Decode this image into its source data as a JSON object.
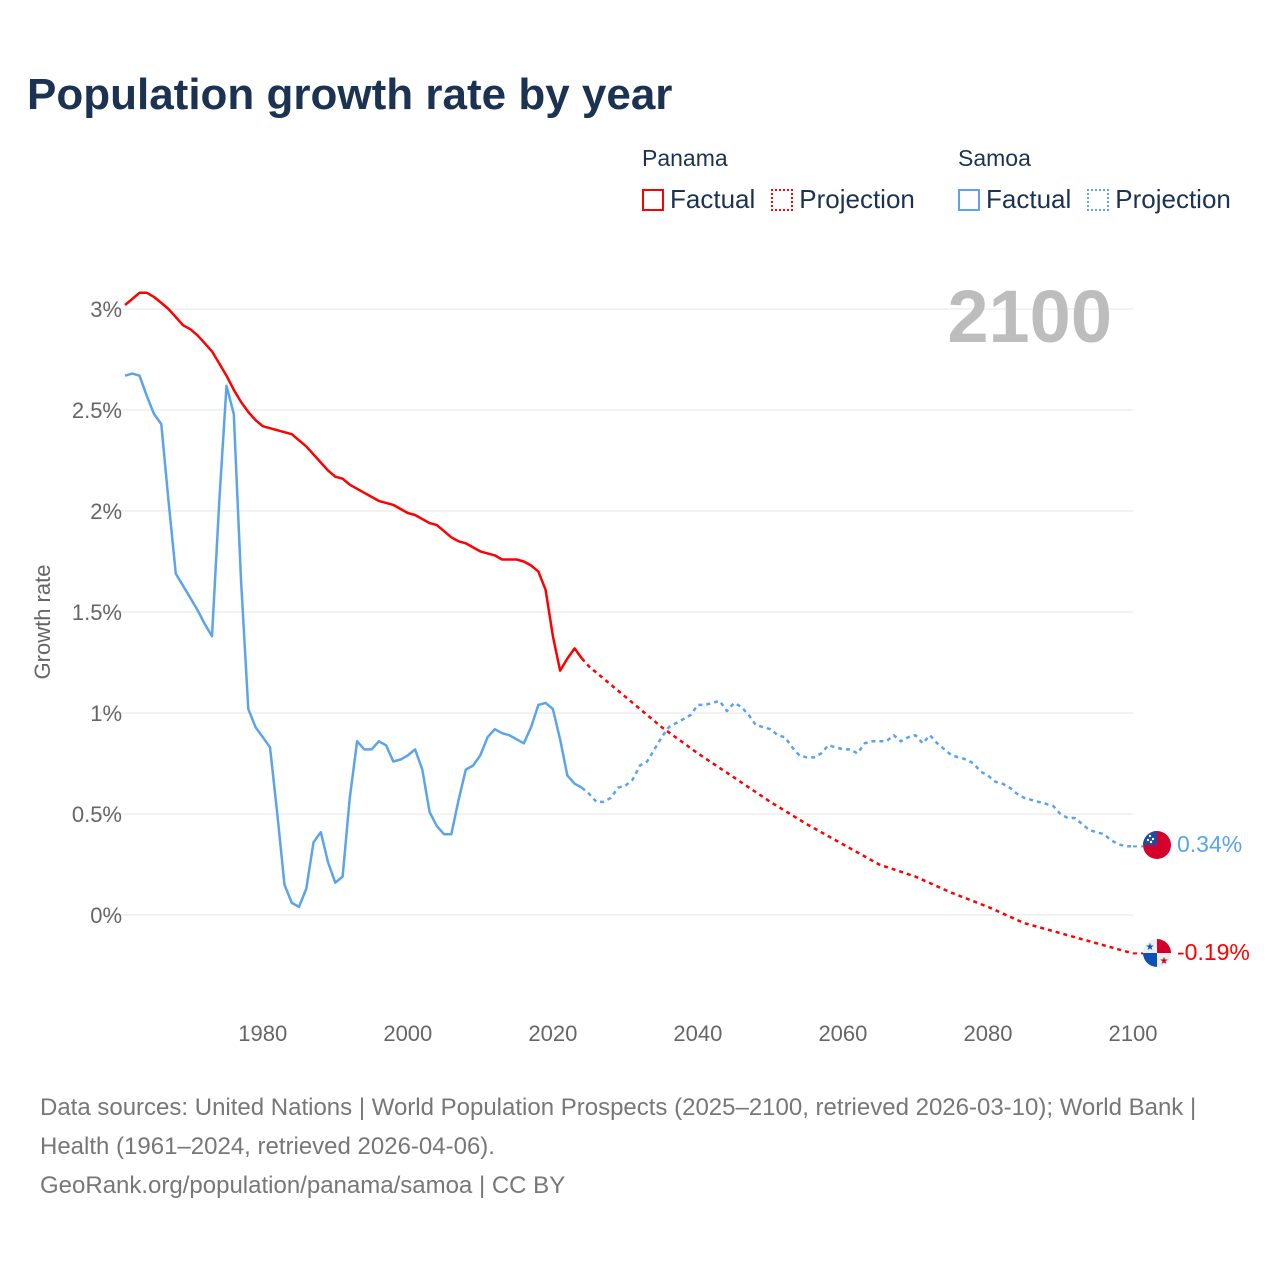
{
  "title": "Population growth rate by year",
  "legend": {
    "groups": [
      {
        "name": "Panama",
        "factual": "Factual",
        "projection": "Projection",
        "color": "#ff0000"
      },
      {
        "name": "Samoa",
        "factual": "Factual",
        "projection": "Projection",
        "color": "#5ba4ec"
      }
    ]
  },
  "year_overlay": "2100",
  "end_labels": {
    "samoa": "0.34%",
    "panama": "-0.19%"
  },
  "sources": {
    "line1": "Data sources: United Nations | World Population Prospects (2025–2100, retrieved 2026-03-10); World Bank | Health (1961–2024, retrieved 2026-04-06).",
    "line2": "GeoRank.org/population/panama/samoa | CC BY"
  },
  "chart_data": {
    "type": "line",
    "title": "Population growth rate by year",
    "ylabel": "Growth rate",
    "xlabel": "",
    "xlim": [
      1961,
      2100
    ],
    "ylim": [
      -0.3,
      3.2
    ],
    "grid": true,
    "xticks": [
      {
        "v": 1980,
        "label": "1980"
      },
      {
        "v": 2000,
        "label": "2000"
      },
      {
        "v": 2020,
        "label": "2020"
      },
      {
        "v": 2040,
        "label": "2040"
      },
      {
        "v": 2060,
        "label": "2060"
      },
      {
        "v": 2080,
        "label": "2080"
      },
      {
        "v": 2100,
        "label": "2100"
      }
    ],
    "yticks": [
      {
        "v": 0,
        "label": "0%"
      },
      {
        "v": 0.5,
        "label": "0.5%"
      },
      {
        "v": 1,
        "label": "1%"
      },
      {
        "v": 1.5,
        "label": "1.5%"
      },
      {
        "v": 2,
        "label": "2%"
      },
      {
        "v": 2.5,
        "label": "2.5%"
      },
      {
        "v": 3,
        "label": "3%"
      }
    ],
    "legend_position": "top-right",
    "series": [
      {
        "name": "Panama Factual",
        "color": "#ff0000",
        "dashed": false,
        "start_year": 1961,
        "values": [
          3.02,
          3.05,
          3.08,
          3.08,
          3.06,
          3.03,
          3.0,
          2.96,
          2.92,
          2.9,
          2.87,
          2.83,
          2.79,
          2.73,
          2.67,
          2.6,
          2.54,
          2.49,
          2.45,
          2.42,
          2.41,
          2.4,
          2.39,
          2.38,
          2.35,
          2.32,
          2.28,
          2.24,
          2.2,
          2.17,
          2.16,
          2.13,
          2.11,
          2.09,
          2.07,
          2.05,
          2.04,
          2.03,
          2.01,
          1.99,
          1.98,
          1.96,
          1.94,
          1.93,
          1.9,
          1.87,
          1.85,
          1.84,
          1.82,
          1.8,
          1.79,
          1.78,
          1.76,
          1.76,
          1.76,
          1.75,
          1.73,
          1.7,
          1.61,
          1.38,
          1.21,
          1.27,
          1.32,
          1.27
        ]
      },
      {
        "name": "Panama Projection",
        "color": "#ff0000",
        "dashed": true,
        "start_year": 2024,
        "step": 5,
        "values": [
          1.27
        ],
        "points": [
          [
            2024,
            1.27
          ],
          [
            2025,
            1.23
          ],
          [
            2030,
            1.08
          ],
          [
            2035,
            0.93
          ],
          [
            2040,
            0.8
          ],
          [
            2045,
            0.68
          ],
          [
            2050,
            0.56
          ],
          [
            2055,
            0.45
          ],
          [
            2060,
            0.35
          ],
          [
            2065,
            0.25
          ],
          [
            2070,
            0.19
          ],
          [
            2075,
            0.11
          ],
          [
            2080,
            0.04
          ],
          [
            2085,
            -0.04
          ],
          [
            2090,
            -0.09
          ],
          [
            2095,
            -0.14
          ],
          [
            2100,
            -0.19
          ]
        ]
      },
      {
        "name": "Samoa Factual",
        "color": "#5ba4ec",
        "dashed": false,
        "start_year": 1961,
        "values": [
          2.67,
          2.68,
          2.67,
          2.57,
          2.48,
          2.43,
          2.05,
          1.69,
          1.63,
          1.57,
          1.51,
          1.44,
          1.38,
          2.05,
          2.62,
          2.48,
          1.66,
          1.02,
          0.93,
          0.88,
          0.83,
          0.5,
          0.15,
          0.06,
          0.04,
          0.13,
          0.36,
          0.41,
          0.26,
          0.16,
          0.19,
          0.58,
          0.86,
          0.82,
          0.82,
          0.86,
          0.84,
          0.76,
          0.77,
          0.79,
          0.82,
          0.72,
          0.51,
          0.44,
          0.4,
          0.4,
          0.57,
          0.72,
          0.74,
          0.79,
          0.88,
          0.92,
          0.9,
          0.89,
          0.87,
          0.85,
          0.93,
          1.04,
          1.05,
          1.02,
          0.87,
          0.69,
          0.65,
          0.63
        ]
      },
      {
        "name": "Samoa Projection",
        "color": "#5ba4ec",
        "dashed": true,
        "start_year": 2024,
        "values": [
          0.63,
          0.6,
          0.56,
          0.56,
          0.58,
          0.63,
          0.64,
          0.67,
          0.74,
          0.76,
          0.82,
          0.88,
          0.93,
          0.95,
          0.97,
          0.99,
          1.04,
          1.04,
          1.05,
          1.06,
          1.01,
          1.05,
          1.03,
          0.99,
          0.94,
          0.93,
          0.92,
          0.89,
          0.88,
          0.83,
          0.79,
          0.78,
          0.78,
          0.8,
          0.84,
          0.83,
          0.82,
          0.82,
          0.8,
          0.85,
          0.86,
          0.86,
          0.86,
          0.89,
          0.86,
          0.88,
          0.89,
          0.85,
          0.89,
          0.85,
          0.82,
          0.79,
          0.78,
          0.77,
          0.75,
          0.71,
          0.69,
          0.66,
          0.65,
          0.63,
          0.6,
          0.58,
          0.57,
          0.56,
          0.55,
          0.54,
          0.5,
          0.48,
          0.48,
          0.45,
          0.42,
          0.41,
          0.4,
          0.37,
          0.35,
          0.34,
          0.34
        ]
      }
    ]
  }
}
